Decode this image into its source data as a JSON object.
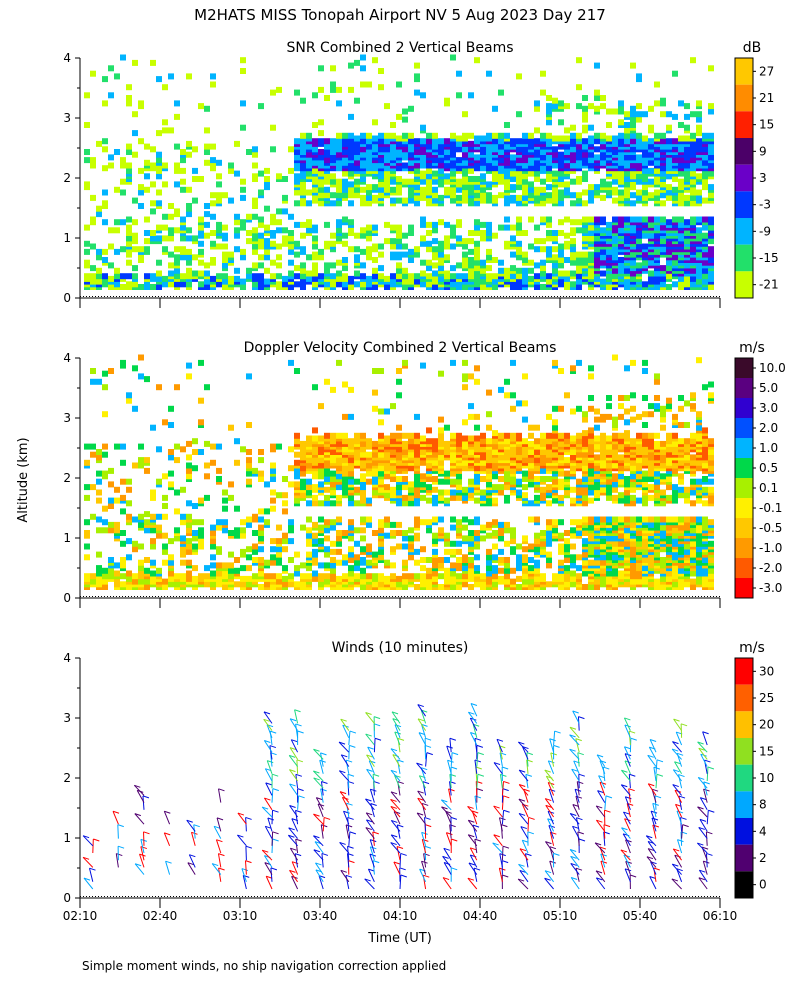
{
  "figure": {
    "title": "M2HATS MISS Tonopah Airport NV   5 Aug 2023 Day 217",
    "footnote": "Simple moment winds, no ship navigation correction applied",
    "y_axis_label": "Altitude (km)",
    "x_axis_label": "Time (UT)",
    "x_tick_labels": [
      "02:10",
      "02:40",
      "03:10",
      "03:40",
      "04:10",
      "04:40",
      "05:10",
      "05:40",
      "06:10"
    ],
    "y_tick_labels": [
      "0",
      "1",
      "2",
      "3",
      "4"
    ]
  },
  "chart_data": [
    {
      "type": "heatmap",
      "title": "SNR Combined 2 Vertical Beams",
      "units": "dB",
      "xlabel": "",
      "ylabel": "Altitude (km)",
      "x_range": [
        "02:10",
        "06:10"
      ],
      "ylim": [
        0,
        4
      ],
      "colorbar": {
        "labels": [
          "27",
          "21",
          "15",
          "9",
          "3",
          "-3",
          "-9",
          "-15",
          "-21"
        ],
        "colors": [
          "#ffc800",
          "#ff8c00",
          "#ff2000",
          "#4b0068",
          "#6a00c8",
          "#0038ff",
          "#00b4ff",
          "#22e06a",
          "#c8ff00"
        ]
      },
      "description_values": {
        "high_snr_layer_km": [
          2.2,
          2.6
        ],
        "layer_start_time": "03:30"
      }
    },
    {
      "type": "heatmap",
      "title": "Doppler Velocity Combined 2 Vertical Beams",
      "units": "m/s",
      "xlabel": "",
      "ylabel": "Altitude (km)",
      "x_range": [
        "02:10",
        "06:10"
      ],
      "ylim": [
        0,
        4
      ],
      "colorbar": {
        "labels": [
          "10.0",
          "5.0",
          "3.0",
          "2.0",
          "1.0",
          "0.5",
          "0.1",
          "-0.1",
          "-0.5",
          "-1.0",
          "-2.0",
          "-3.0"
        ],
        "colors": [
          "#3a0a2a",
          "#5a0080",
          "#3000d0",
          "#0050ff",
          "#00b4ff",
          "#00d84a",
          "#a8f000",
          "#fff000",
          "#ffc800",
          "#ff9a00",
          "#ff5a00",
          "#ff0000"
        ]
      }
    },
    {
      "type": "barbs",
      "title": "Winds (10 minutes)",
      "units": "m/s",
      "xlabel": "Time (UT)",
      "ylabel": "Altitude (km)",
      "x_range": [
        "02:10",
        "06:10"
      ],
      "ylim": [
        0,
        4
      ],
      "colorbar": {
        "labels": [
          "30",
          "25",
          "20",
          "15",
          "10",
          "8",
          "4",
          "2",
          "0"
        ],
        "colors": [
          "#ff0000",
          "#ff6000",
          "#ffc000",
          "#90e020",
          "#20d880",
          "#00a8ff",
          "#0010e0",
          "#500070",
          "#000000"
        ]
      }
    }
  ]
}
